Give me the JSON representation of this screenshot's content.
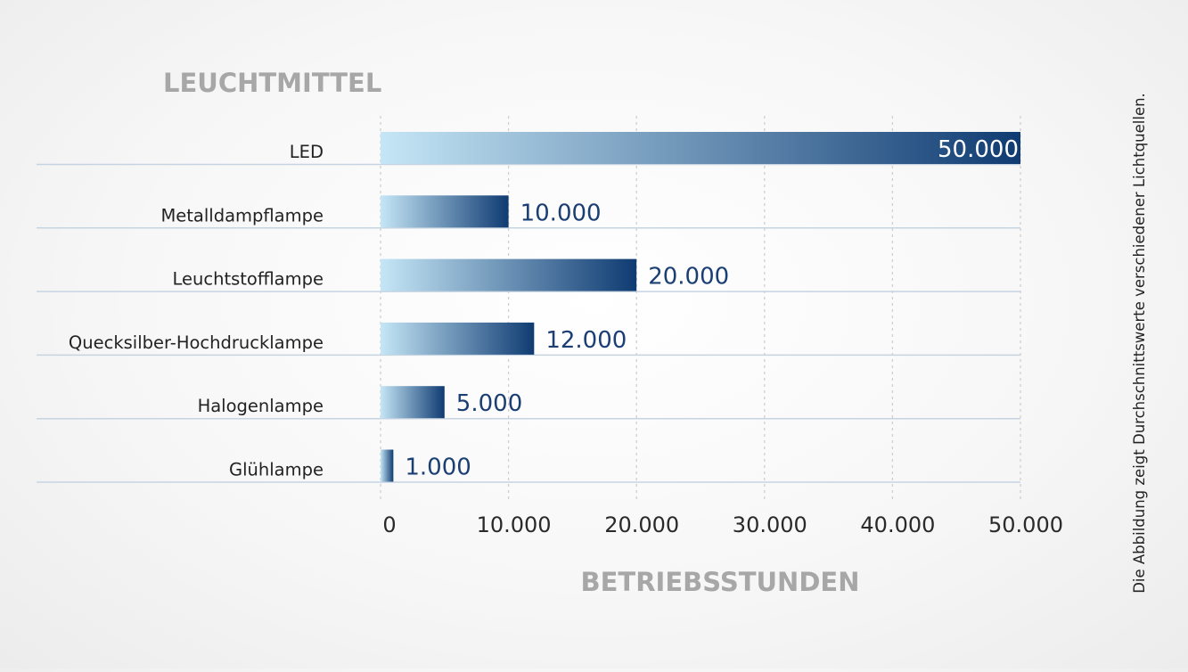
{
  "colors": {
    "bar_gradient_start": "#c5e6f6",
    "bar_gradient_end": "#0f3b72",
    "value_label": "#1b3f73",
    "axis_title": "#a7a7a7",
    "category_label": "#222222",
    "tick_label": "#2a2a2a",
    "row_separator": "#c6d4e1",
    "gridline": "#cfcfcf",
    "footnote": "#222222"
  },
  "footnote": "Die Abbildung zeigt Durchschnittswerte verschiedener Lichtquellen.",
  "chart_data": {
    "type": "bar",
    "orientation": "horizontal",
    "categories": [
      "LED",
      "Metalldampflampe",
      "Leuchtstofflampe",
      "Quecksilber-Hochdrucklampe",
      "Halogenlampe",
      "Glühlampe"
    ],
    "values": [
      50000,
      10000,
      20000,
      12000,
      5000,
      1000
    ],
    "value_labels": [
      "50.000",
      "10.000",
      "20.000",
      "12.000",
      "5.000",
      "1.000"
    ],
    "xlabel": "BETRIEBSSTUNDEN",
    "ylabel": "LEUCHTMITTEL",
    "xlim": [
      0,
      50000
    ],
    "x_ticks": [
      0,
      10000,
      20000,
      30000,
      40000,
      50000
    ],
    "x_tick_labels": [
      "0",
      "10.000",
      "20.000",
      "30.000",
      "40.000",
      "50.000"
    ],
    "grid": "vertical dashed"
  }
}
